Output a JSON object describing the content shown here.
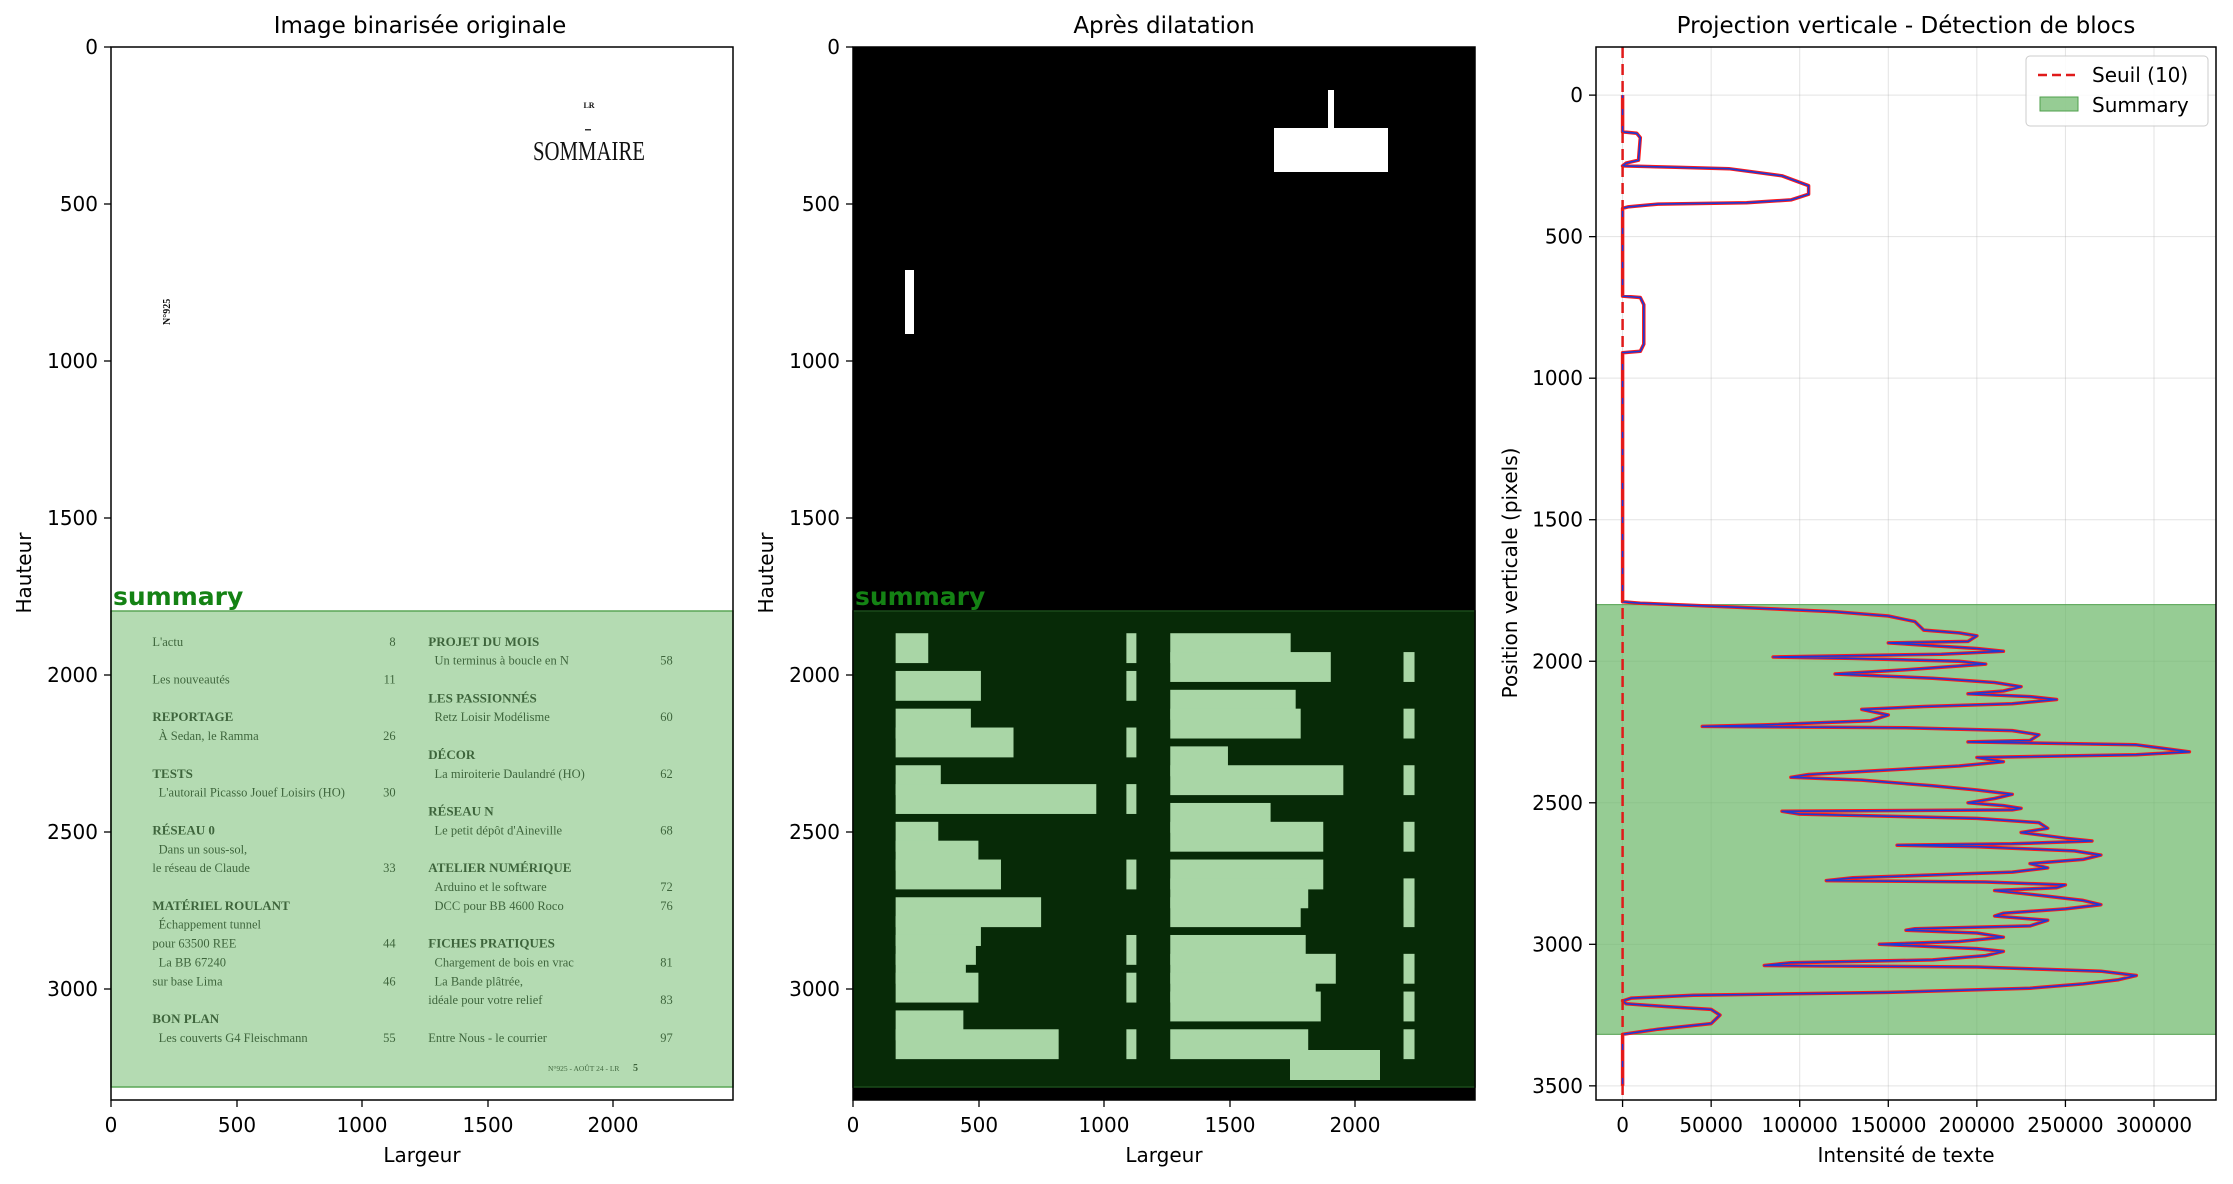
{
  "figure": {
    "panel1": {
      "title": "Image binarisée originale",
      "xlabel": "Largeur",
      "ylabel": "Hauteur",
      "xticks": [
        "0",
        "500",
        "1000",
        "1500",
        "2000"
      ],
      "yticks": [
        "0",
        "500",
        "1000",
        "1500",
        "2000",
        "2500",
        "3000"
      ],
      "region_label": "summary"
    },
    "panel2": {
      "title": "Après dilatation",
      "xlabel": "Largeur",
      "ylabel": "Hauteur",
      "xticks": [
        "0",
        "500",
        "1000",
        "1500",
        "2000"
      ],
      "yticks": [
        "0",
        "500",
        "1000",
        "1500",
        "2000",
        "2500",
        "3000"
      ],
      "region_label": "summary"
    },
    "panel3": {
      "title": "Projection verticale - Détection de blocs",
      "xlabel": "Intensité de texte",
      "ylabel": "Position verticale (pixels)",
      "xticks": [
        "0",
        "50000",
        "100000",
        "150000",
        "200000",
        "250000",
        "300000"
      ],
      "yticks": [
        "0",
        "500",
        "1000",
        "1500",
        "2000",
        "2500",
        "3000",
        "3500"
      ],
      "legend": [
        "Seuil (10)",
        "Summary"
      ]
    }
  },
  "document": {
    "header_small": "LR",
    "header_title": "SOMMAIRE",
    "issue_vertical": "N°925",
    "footer": "N°925 - AOÛT 24 - LR",
    "footer_page": "5",
    "left_column": [
      {
        "text": "L'actu",
        "page": "8",
        "heading": false
      },
      {
        "text": "Les nouveautés",
        "page": "11",
        "heading": false
      },
      {
        "text": "REPORTAGE",
        "page": "",
        "heading": true
      },
      {
        "text": "À Sedan, le Ramma",
        "page": "26",
        "heading": false
      },
      {
        "text": "TESTS",
        "page": "",
        "heading": true
      },
      {
        "text": "L'autorail Picasso Jouef Loisirs (HO)",
        "page": "30",
        "heading": false
      },
      {
        "text": "RÉSEAU 0",
        "page": "",
        "heading": true
      },
      {
        "text": "Dans un sous-sol,",
        "page": "",
        "heading": false
      },
      {
        "text": "le réseau de Claude",
        "page": "33",
        "heading": false
      },
      {
        "text": "MATÉRIEL ROULANT",
        "page": "",
        "heading": true
      },
      {
        "text": "Échappement tunnel",
        "page": "",
        "heading": false
      },
      {
        "text": "pour 63500 REE",
        "page": "44",
        "heading": false
      },
      {
        "text": "La BB 67240",
        "page": "",
        "heading": false
      },
      {
        "text": "sur base Lima",
        "page": "46",
        "heading": false
      },
      {
        "text": "BON PLAN",
        "page": "",
        "heading": true
      },
      {
        "text": "Les couverts G4 Fleischmann",
        "page": "55",
        "heading": false
      }
    ],
    "right_column": [
      {
        "text": "PROJET DU MOIS",
        "page": "",
        "heading": true
      },
      {
        "text": "Un terminus à boucle en N",
        "page": "58",
        "heading": false
      },
      {
        "text": "LES PASSIONNÉS",
        "page": "",
        "heading": true
      },
      {
        "text": "Retz Loisir Modélisme",
        "page": "60",
        "heading": false
      },
      {
        "text": "DÉCOR",
        "page": "",
        "heading": true
      },
      {
        "text": "La miroiterie Daulandré (HO)",
        "page": "62",
        "heading": false
      },
      {
        "text": "RÉSEAU N",
        "page": "",
        "heading": true
      },
      {
        "text": "Le petit dépôt d'Aineville",
        "page": "68",
        "heading": false
      },
      {
        "text": "ATELIER NUMÉRIQUE",
        "page": "",
        "heading": true
      },
      {
        "text": "Arduino et le software",
        "page": "72",
        "heading": false
      },
      {
        "text": "DCC pour BB 4600 Roco",
        "page": "76",
        "heading": false
      },
      {
        "text": "FICHES PRATIQUES",
        "page": "",
        "heading": true
      },
      {
        "text": "Chargement de bois en vrac",
        "page": "81",
        "heading": false
      },
      {
        "text": "La Bande plâtrée,",
        "page": "",
        "heading": false
      },
      {
        "text": "idéale pour votre relief",
        "page": "83",
        "heading": false
      },
      {
        "text": "Entre Nous - le courrier",
        "page": "97",
        "heading": false
      }
    ]
  },
  "colors": {
    "summary_fill": "#a9d6a6",
    "summary_dark": "#072a07",
    "summary_label": "#148214",
    "curve": "#ff1a1a",
    "curve_peaks": "#1a3bd6",
    "threshold": "#e01a1a"
  },
  "chart_data": [
    {
      "type": "image",
      "title": "Image binarisée originale",
      "xlabel": "Largeur",
      "ylabel": "Hauteur",
      "xlim": [
        0,
        2480
      ],
      "ylim": [
        3350,
        0
      ],
      "regions": [
        {
          "name": "summary",
          "y": [
            1800,
            3320
          ]
        }
      ]
    },
    {
      "type": "image",
      "title": "Après dilatation",
      "xlabel": "Largeur",
      "ylabel": "Hauteur",
      "xlim": [
        0,
        2480
      ],
      "ylim": [
        3350,
        0
      ],
      "regions": [
        {
          "name": "summary",
          "y": [
            1800,
            3320
          ]
        }
      ]
    },
    {
      "type": "line",
      "title": "Projection verticale - Détection de blocs",
      "xlabel": "Intensité de texte",
      "ylabel": "Position verticale (pixels)",
      "xlim": [
        -15000,
        335000
      ],
      "ylim": [
        3550,
        -170
      ],
      "grid": true,
      "legend_position": "top-right",
      "threshold": {
        "name": "Seuil (10)",
        "value": 10
      },
      "summary_span": {
        "name": "Summary",
        "y": [
          1800,
          3318
        ]
      },
      "series": [
        {
          "points": [
            [
              0,
              0
            ],
            [
              0,
              130
            ],
            [
              8000,
              135
            ],
            [
              10000,
              150
            ],
            [
              9000,
              230
            ],
            [
              2000,
              240
            ],
            [
              0,
              250
            ],
            [
              30000,
              255
            ],
            [
              60000,
              260
            ],
            [
              90000,
              285
            ],
            [
              105000,
              320
            ],
            [
              105000,
              350
            ],
            [
              95000,
              370
            ],
            [
              70000,
              380
            ],
            [
              20000,
              385
            ],
            [
              3000,
              395
            ],
            [
              0,
              400
            ],
            [
              0,
              710
            ],
            [
              10000,
              715
            ],
            [
              12000,
              740
            ],
            [
              12000,
              880
            ],
            [
              10000,
              905
            ],
            [
              0,
              910
            ],
            [
              0,
              1790
            ],
            [
              10000,
              1795
            ],
            [
              60000,
              1808
            ],
            [
              120000,
              1825
            ],
            [
              150000,
              1840
            ],
            [
              165000,
              1860
            ],
            [
              170000,
              1890
            ],
            [
              190000,
              1900
            ],
            [
              200000,
              1910
            ],
            [
              195000,
              1930
            ],
            [
              150000,
              1935
            ],
            [
              200000,
              1955
            ],
            [
              215000,
              1965
            ],
            [
              180000,
              1975
            ],
            [
              85000,
              1985
            ],
            [
              130000,
              1990
            ],
            [
              190000,
              2000
            ],
            [
              205000,
              2010
            ],
            [
              160000,
              2030
            ],
            [
              120000,
              2045
            ],
            [
              175000,
              2060
            ],
            [
              210000,
              2075
            ],
            [
              225000,
              2090
            ],
            [
              215000,
              2105
            ],
            [
              195000,
              2115
            ],
            [
              230000,
              2125
            ],
            [
              245000,
              2135
            ],
            [
              220000,
              2150
            ],
            [
              170000,
              2160
            ],
            [
              135000,
              2170
            ],
            [
              150000,
              2190
            ],
            [
              140000,
              2210
            ],
            [
              80000,
              2225
            ],
            [
              45000,
              2230
            ],
            [
              160000,
              2235
            ],
            [
              220000,
              2245
            ],
            [
              235000,
              2260
            ],
            [
              230000,
              2280
            ],
            [
              195000,
              2285
            ],
            [
              290000,
              2295
            ],
            [
              320000,
              2320
            ],
            [
              290000,
              2330
            ],
            [
              200000,
              2340
            ],
            [
              215000,
              2355
            ],
            [
              190000,
              2370
            ],
            [
              105000,
              2400
            ],
            [
              95000,
              2410
            ],
            [
              135000,
              2420
            ],
            [
              175000,
              2440
            ],
            [
              200000,
              2455
            ],
            [
              220000,
              2470
            ],
            [
              210000,
              2485
            ],
            [
              195000,
              2500
            ],
            [
              215000,
              2510
            ],
            [
              225000,
              2520
            ],
            [
              220000,
              2525
            ],
            [
              90000,
              2530
            ],
            [
              100000,
              2540
            ],
            [
              200000,
              2555
            ],
            [
              235000,
              2570
            ],
            [
              240000,
              2590
            ],
            [
              225000,
              2605
            ],
            [
              250000,
              2625
            ],
            [
              265000,
              2635
            ],
            [
              220000,
              2645
            ],
            [
              155000,
              2650
            ],
            [
              200000,
              2655
            ],
            [
              255000,
              2670
            ],
            [
              270000,
              2685
            ],
            [
              260000,
              2700
            ],
            [
              230000,
              2715
            ],
            [
              240000,
              2730
            ],
            [
              220000,
              2745
            ],
            [
              130000,
              2765
            ],
            [
              115000,
              2775
            ],
            [
              205000,
              2780
            ],
            [
              250000,
              2790
            ],
            [
              245000,
              2800
            ],
            [
              210000,
              2810
            ],
            [
              240000,
              2830
            ],
            [
              260000,
              2845
            ],
            [
              270000,
              2860
            ],
            [
              250000,
              2875
            ],
            [
              215000,
              2890
            ],
            [
              210000,
              2900
            ],
            [
              240000,
              2915
            ],
            [
              230000,
              2935
            ],
            [
              165000,
              2945
            ],
            [
              160000,
              2950
            ],
            [
              200000,
              2960
            ],
            [
              215000,
              2975
            ],
            [
              190000,
              2990
            ],
            [
              145000,
              3000
            ],
            [
              200000,
              3015
            ],
            [
              215000,
              3025
            ],
            [
              205000,
              3040
            ],
            [
              175000,
              3055
            ],
            [
              95000,
              3065
            ],
            [
              80000,
              3075
            ],
            [
              200000,
              3080
            ],
            [
              270000,
              3095
            ],
            [
              290000,
              3110
            ],
            [
              280000,
              3125
            ],
            [
              260000,
              3140
            ],
            [
              230000,
              3155
            ],
            [
              150000,
              3170
            ],
            [
              40000,
              3180
            ],
            [
              5000,
              3190
            ],
            [
              0,
              3200
            ],
            [
              2000,
              3210
            ],
            [
              25000,
              3220
            ],
            [
              50000,
              3230
            ],
            [
              55000,
              3250
            ],
            [
              50000,
              3280
            ],
            [
              20000,
              3300
            ],
            [
              0,
              3318
            ],
            [
              0,
              3500
            ]
          ]
        }
      ]
    }
  ]
}
